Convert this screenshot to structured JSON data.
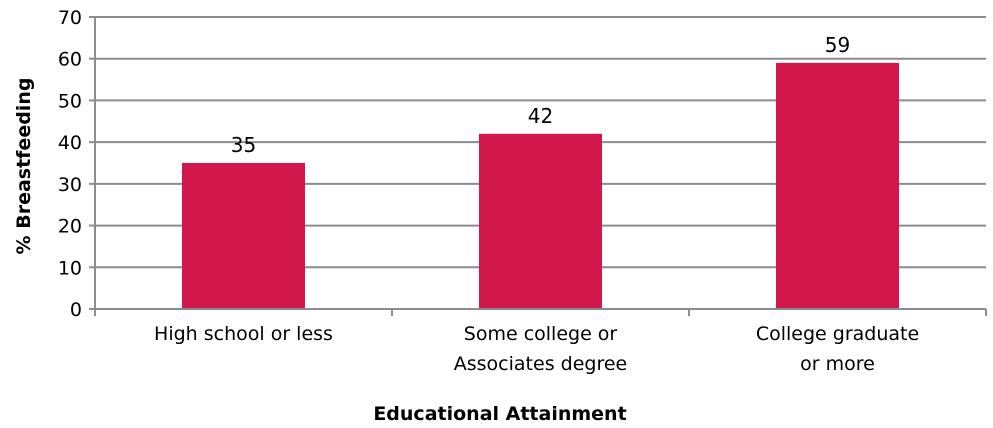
{
  "chart_data": {
    "type": "bar",
    "title": "",
    "xlabel": "Educational Attainment",
    "ylabel": "% Breastfeeding",
    "categories": [
      [
        "High school or less"
      ],
      [
        "Some college or",
        "Associates degree"
      ],
      [
        "College graduate",
        "or more"
      ]
    ],
    "values": [
      35,
      42,
      59
    ],
    "data_labels": [
      "35",
      "42",
      "59"
    ],
    "ylim": [
      0,
      70
    ],
    "yticks": [
      "0",
      "10",
      "20",
      "30",
      "40",
      "50",
      "60",
      "70"
    ],
    "grid": true,
    "legend": "none",
    "bar_color": "#d2174a",
    "grid_color": "#8c8c8c"
  }
}
